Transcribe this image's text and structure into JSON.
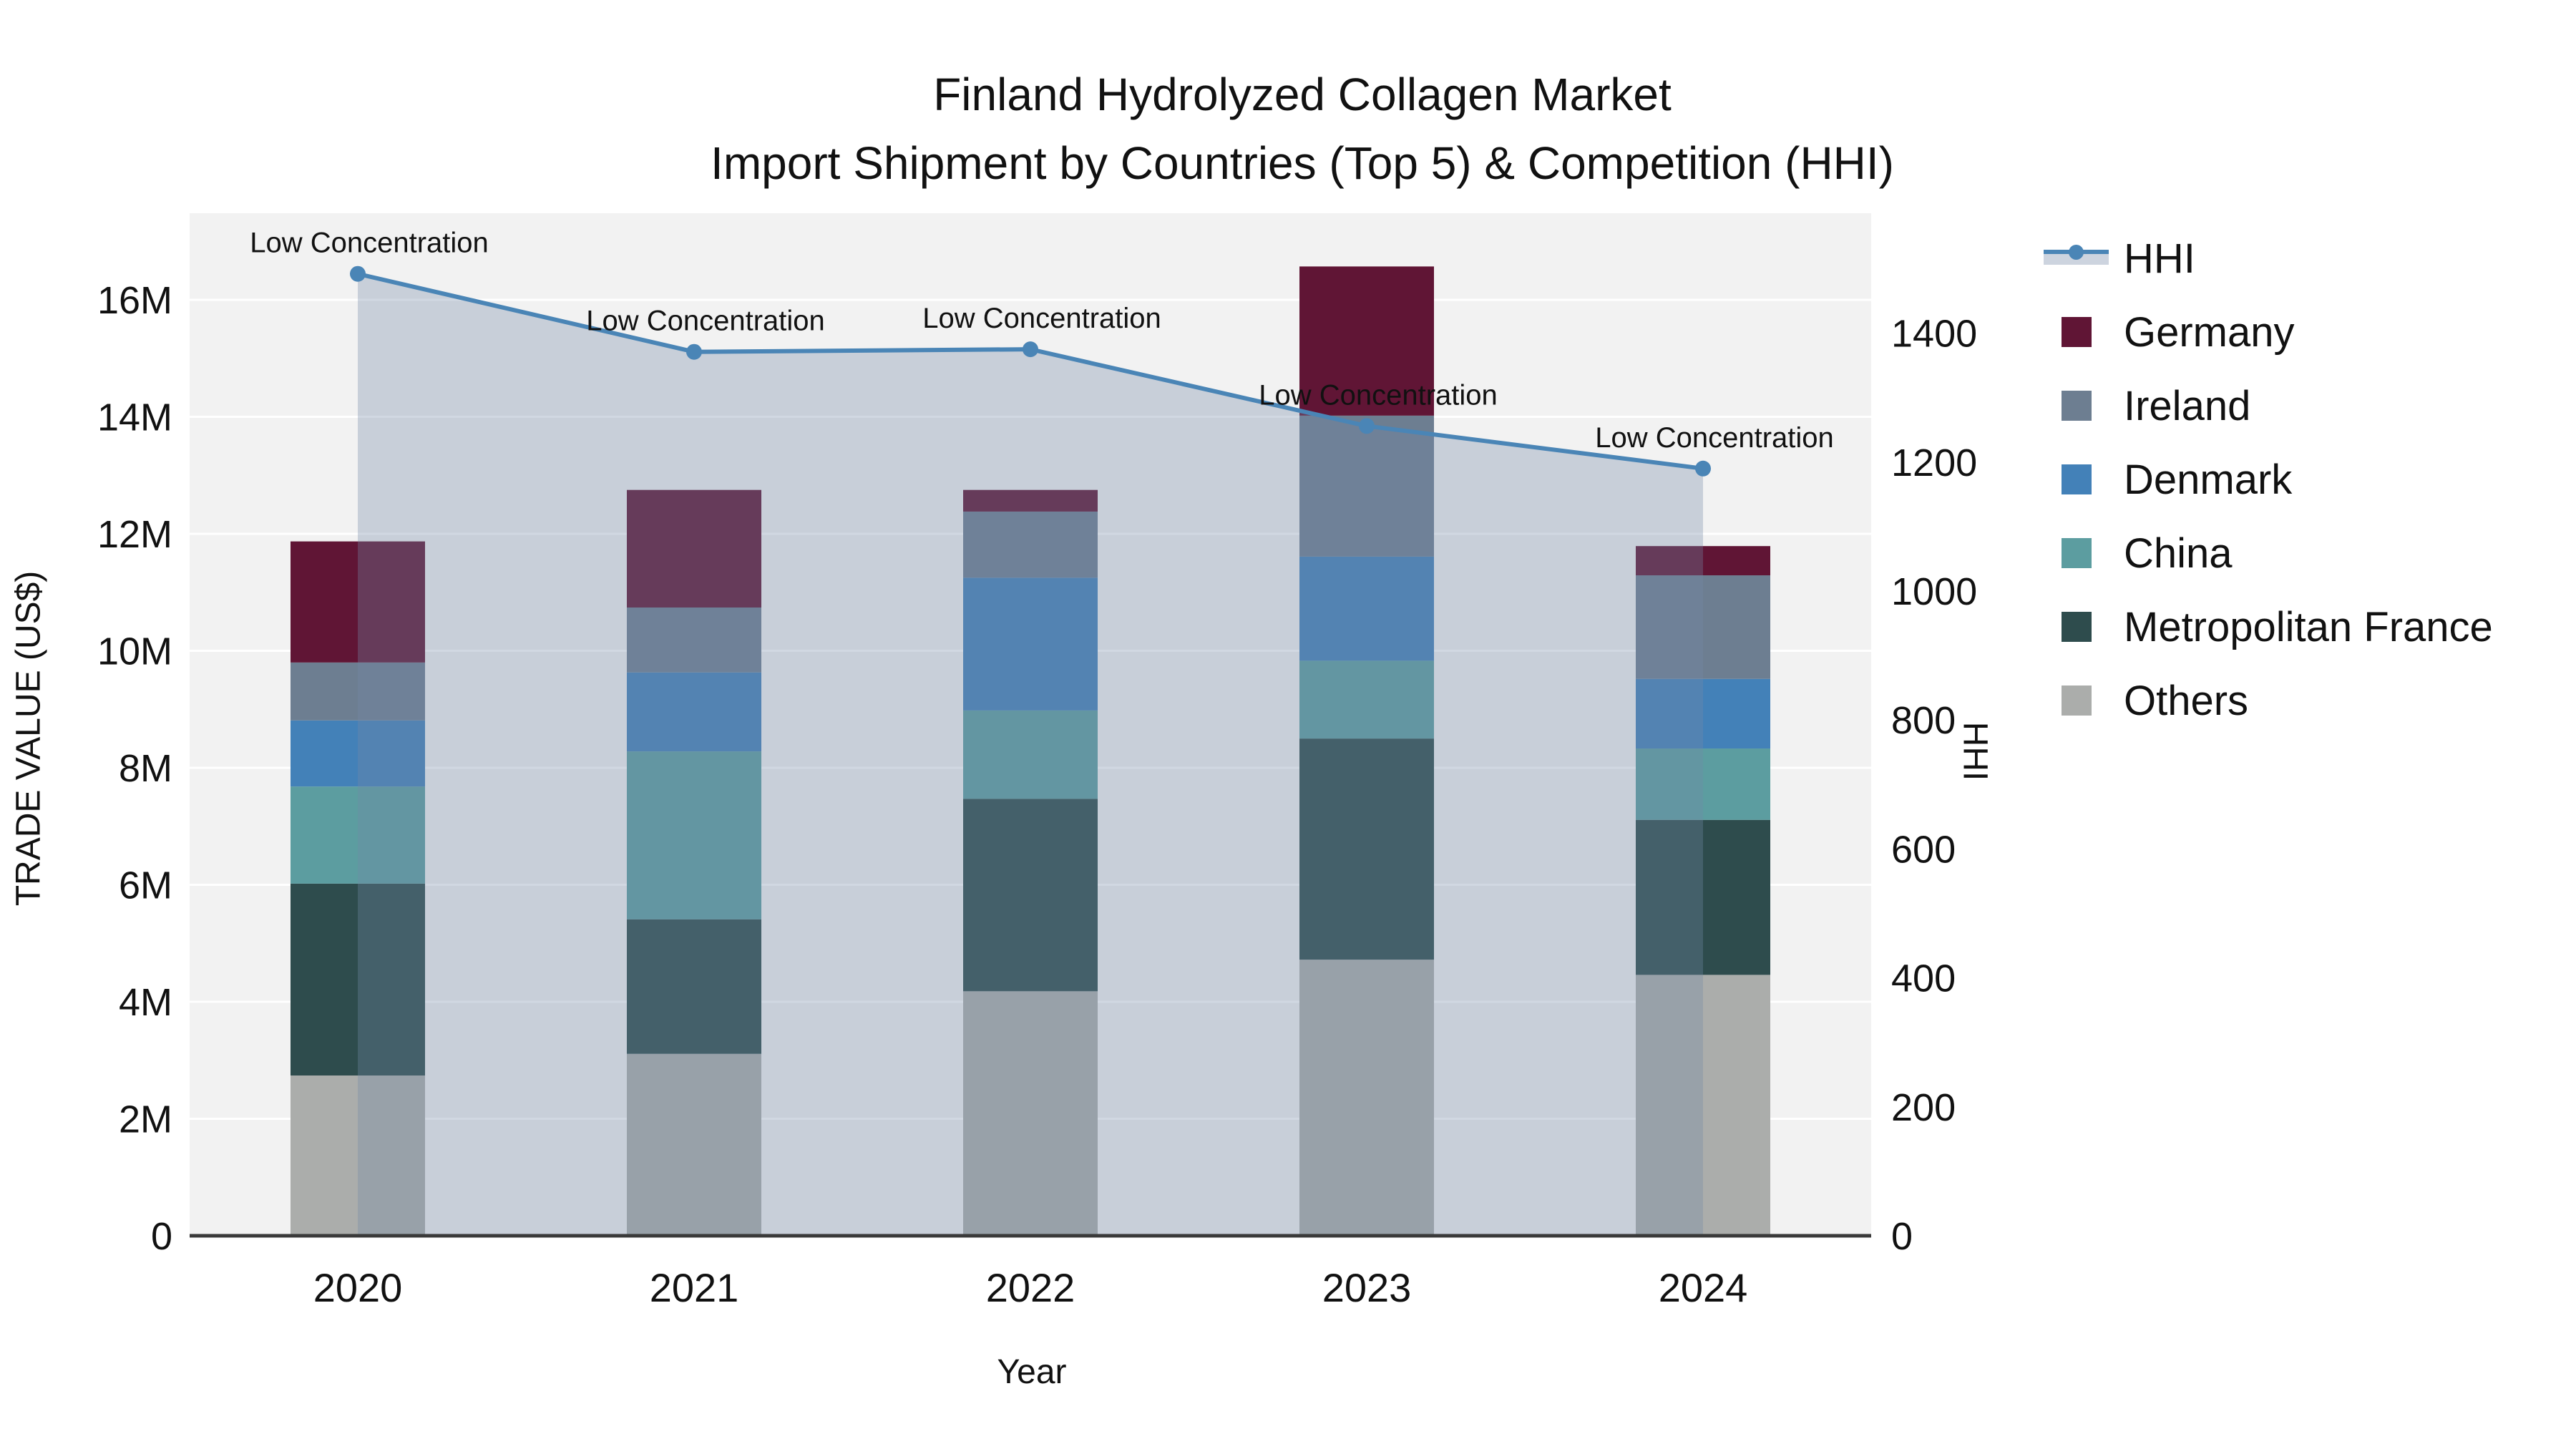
{
  "title": {
    "line1": "Finland Hydrolyzed Collagen Market",
    "line2": "Import Shipment by Countries (Top 5) & Competition (HHI)"
  },
  "axes": {
    "y_left_label": "TRADE VALUE (US$)",
    "y_right_label": "HHI",
    "x_label": "Year"
  },
  "annotation_text": "Low Concentration",
  "legend": {
    "items": [
      {
        "label": "HHI",
        "type": "line"
      },
      {
        "label": "Germany",
        "type": "swatch",
        "color": "#601535"
      },
      {
        "label": "Ireland",
        "type": "swatch",
        "color": "#6d7e91"
      },
      {
        "label": "Denmark",
        "type": "swatch",
        "color": "#4381b8"
      },
      {
        "label": "China",
        "type": "swatch",
        "color": "#5c9da0"
      },
      {
        "label": "Metropolitan France",
        "type": "swatch",
        "color": "#2e4c4d"
      },
      {
        "label": "Others",
        "type": "swatch",
        "color": "#abadab"
      }
    ]
  },
  "chart_data": {
    "type": "bar",
    "subtype": "stacked-bars-with-line-overlay",
    "title": "Finland Hydrolyzed Collagen Market — Import Shipment by Countries (Top 5) & Competition (HHI)",
    "xlabel": "Year",
    "categories": [
      "2020",
      "2021",
      "2022",
      "2023",
      "2024"
    ],
    "bar_value_unit": "US$ millions",
    "series": [
      {
        "name": "Others",
        "color": "#abadab",
        "values": [
          2.74,
          3.11,
          4.18,
          4.72,
          4.46
        ]
      },
      {
        "name": "Metropolitan France",
        "color": "#2e4c4d",
        "values": [
          3.28,
          2.3,
          3.29,
          3.78,
          2.65
        ]
      },
      {
        "name": "China",
        "color": "#5c9da0",
        "values": [
          1.66,
          2.87,
          1.51,
          1.33,
          1.22
        ]
      },
      {
        "name": "Denmark",
        "color": "#4381b8",
        "values": [
          1.13,
          1.35,
          2.27,
          1.78,
          1.19
        ]
      },
      {
        "name": "Ireland",
        "color": "#6d7e91",
        "values": [
          0.99,
          1.11,
          1.13,
          2.41,
          1.77
        ]
      },
      {
        "name": "Germany",
        "color": "#601535",
        "values": [
          2.07,
          2.01,
          0.37,
          2.55,
          0.5
        ]
      }
    ],
    "line_series": {
      "name": "HHI",
      "axis": "right",
      "color": "#4a85b6",
      "area_fill": "rgba(116,137,167,0.33)",
      "values": [
        1492,
        1371,
        1375,
        1256,
        1190
      ],
      "point_annotation": "Low Concentration"
    },
    "y_left": {
      "label": "TRADE VALUE (US$)",
      "ticks": [
        "0",
        "2M",
        "4M",
        "6M",
        "8M",
        "10M",
        "12M",
        "14M",
        "16M"
      ],
      "tick_values": [
        0,
        2,
        4,
        6,
        8,
        10,
        12,
        14,
        16
      ],
      "axis_max": 17.48
    },
    "y_right": {
      "label": "HHI",
      "ticks": [
        "0",
        "200",
        "400",
        "600",
        "800",
        "1000",
        "1200",
        "1400"
      ],
      "tick_values": [
        0,
        200,
        400,
        600,
        800,
        1000,
        1200,
        1400
      ],
      "axis_max": 1586
    },
    "grid": true,
    "legend_position": "right",
    "plot_bg": "#f2f2f2",
    "grid_color": "#ffffff",
    "axis_line_color": "#3a3a3a",
    "text_color": "#111111"
  }
}
